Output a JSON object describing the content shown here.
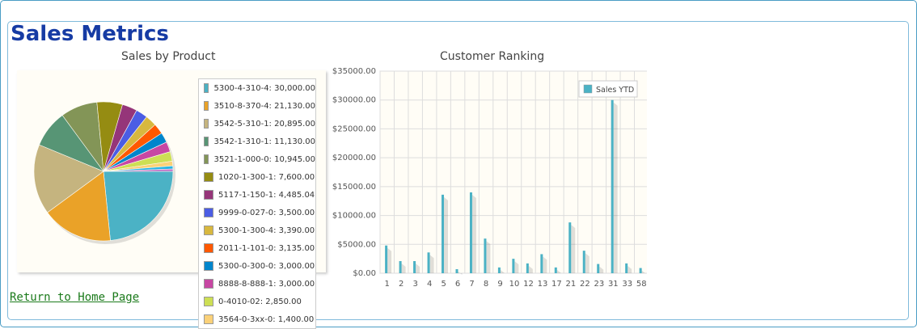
{
  "page": {
    "title": "Sales Metrics",
    "return_link": "Return to Home Page"
  },
  "colors": {
    "title": "#163ba4",
    "link": "#1b7a1b",
    "frame": "#4a9cc4",
    "plot_bg": "#fffdf6",
    "bar": "#4bb2c5"
  },
  "pie_chart": {
    "title": "Sales by Product",
    "chart_data": {
      "type": "pie",
      "title": "Sales by Product",
      "slices": [
        {
          "label": "5300-4-310-4: 30,000.00",
          "value": 30000.0,
          "color": "#4bb2c5"
        },
        {
          "label": "3510-8-370-4: 21,130.00",
          "value": 21130.0,
          "color": "#eaa228"
        },
        {
          "label": "3542-5-310-1: 20,895.00",
          "value": 20895.0,
          "color": "#c5b47f"
        },
        {
          "label": "3542-1-310-1: 11,130.00",
          "value": 11130.0,
          "color": "#579575"
        },
        {
          "label": "3521-1-000-0: 10,945.00",
          "value": 10945.0,
          "color": "#839557"
        },
        {
          "label": "1020-1-300-1: 7,600.00",
          "value": 7600.0,
          "color": "#958c12"
        },
        {
          "label": "5117-1-150-1: 4,485.04",
          "value": 4485.04,
          "color": "#953579"
        },
        {
          "label": "9999-0-027-0: 3,500.00",
          "value": 3500.0,
          "color": "#4b5de4"
        },
        {
          "label": "5300-1-300-4: 3,390.00",
          "value": 3390.0,
          "color": "#d8b83f"
        },
        {
          "label": "2011-1-101-0: 3,135.00",
          "value": 3135.0,
          "color": "#ff5800"
        },
        {
          "label": "5300-0-300-0: 3,000.00",
          "value": 3000.0,
          "color": "#0085cc"
        },
        {
          "label": "8888-8-888-1: 3,000.00",
          "value": 3000.0,
          "color": "#c747a3"
        },
        {
          "label": "0-4010-02: 2,850.00",
          "value": 2850.0,
          "color": "#cddf54"
        },
        {
          "label": "3564-0-3xx-0: 1,400.00",
          "value": 1400.0,
          "color": "#fbd178"
        },
        {
          "label": "",
          "value": 900,
          "color": "#26b4e3"
        },
        {
          "label": "",
          "value": 700,
          "color": "#bd70c7"
        }
      ]
    }
  },
  "bar_chart": {
    "title": "Customer Ranking",
    "legend_label": "Sales YTD",
    "chart_data": {
      "type": "bar",
      "title": "Customer Ranking",
      "categories": [
        "1",
        "2",
        "3",
        "4",
        "5",
        "6",
        "7",
        "8",
        "9",
        "10",
        "12",
        "13",
        "17",
        "21",
        "22",
        "23",
        "31",
        "33",
        "58"
      ],
      "series": [
        {
          "name": "Sales YTD",
          "values": [
            4800,
            2100,
            2100,
            3600,
            13600,
            700,
            14000,
            6000,
            1000,
            2500,
            1700,
            3300,
            1000,
            8800,
            3900,
            1600,
            30000,
            1700,
            900
          ]
        }
      ],
      "ylim": [
        0,
        35000
      ],
      "yticks": [
        "$0.00",
        "$5000.00",
        "$10000.00",
        "$15000.00",
        "$20000.00",
        "$25000.00",
        "$30000.00",
        "$35000.00"
      ],
      "grid": true,
      "legend_position": "top-right"
    }
  }
}
